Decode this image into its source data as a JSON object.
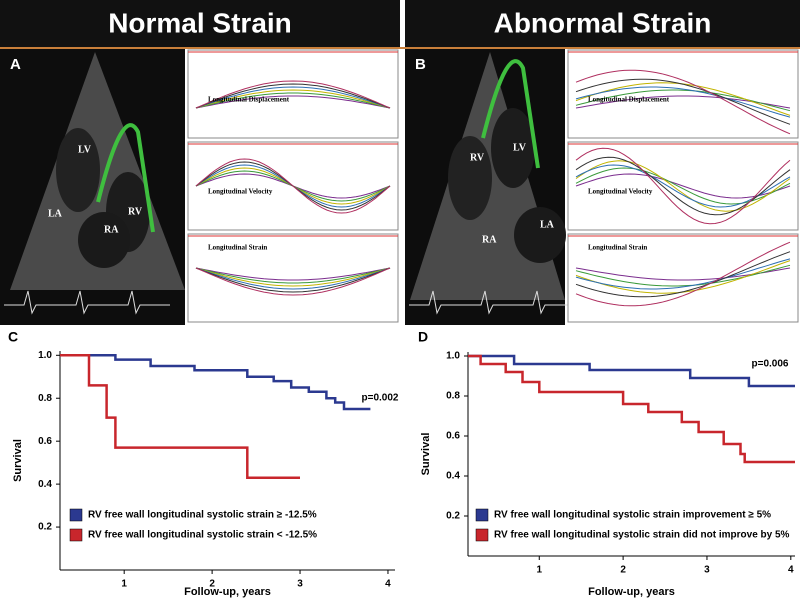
{
  "panels": [
    {
      "title": "Normal Strain",
      "label": "A",
      "chambers": [
        "LV",
        "RV",
        "LA",
        "RA"
      ],
      "plots": [
        "Longitudinal Displacement",
        "Longitudinal Velocity",
        "Longitudinal Strain"
      ]
    },
    {
      "title": "Abnormal Strain",
      "label": "B",
      "chambers": [
        "RV",
        "LV",
        "RA",
        "LA"
      ],
      "plots": [
        "Longitudinal Displacement",
        "Longitudinal Velocity",
        "Longitudinal Strain"
      ]
    }
  ],
  "chart_data": [
    {
      "type": "step",
      "panel_label": "C",
      "annotation": "p=0.002",
      "y_label": "Survival",
      "x_label": "Follow-up, years",
      "xlim": [
        0.27,
        4.08
      ],
      "ylim": [
        0,
        1.02
      ],
      "xticks": [
        1,
        2,
        3,
        4
      ],
      "yticks": [
        0.2,
        0.4,
        0.6,
        0.8,
        {
          "value": 1,
          "label": "1.0"
        }
      ],
      "series": [
        {
          "name": "RV free wall longitudinal systolic strain ≥ -12.5%",
          "color": "#2b3990",
          "x": [
            0.27,
            0.9,
            1.3,
            1.8,
            2.4,
            2.7,
            2.9,
            3.1,
            3.3,
            3.4,
            3.5,
            3.8
          ],
          "values": [
            1,
            0.98,
            0.95,
            0.93,
            0.9,
            0.88,
            0.85,
            0.83,
            0.8,
            0.78,
            0.75,
            0.75
          ]
        },
        {
          "name": "RV free wall longitudinal systolic strain < -12.5%",
          "color": "#c8262c",
          "x": [
            0.27,
            0.6,
            0.8,
            0.9,
            2.4,
            3.0
          ],
          "values": [
            1,
            0.86,
            0.71,
            0.57,
            0.43,
            0.43
          ]
        }
      ]
    },
    {
      "type": "step",
      "panel_label": "D",
      "annotation": "p=0.006",
      "y_label": "Survival",
      "x_label": "Follow-up, years",
      "xlim": [
        0.15,
        4.05
      ],
      "ylim": [
        0,
        1.02
      ],
      "xticks": [
        1,
        2,
        3,
        4
      ],
      "yticks": [
        0.2,
        0.4,
        0.6,
        0.8,
        {
          "value": 1,
          "label": "1.0"
        }
      ],
      "series": [
        {
          "name": "RV free wall longitudinal systolic strain improvement ≥ 5%",
          "color": "#2b3990",
          "x": [
            0.15,
            0.7,
            1.6,
            2.8,
            3.5,
            4.05
          ],
          "values": [
            1,
            0.96,
            0.93,
            0.89,
            0.85,
            0.85
          ]
        },
        {
          "name": "RV free wall longitudinal systolic strain did not improve by 5%",
          "color": "#c8262c",
          "x": [
            0.15,
            0.3,
            0.6,
            0.8,
            1.0,
            2.0,
            2.3,
            2.7,
            2.9,
            3.2,
            3.4,
            3.45,
            4.05
          ],
          "values": [
            1,
            0.96,
            0.92,
            0.87,
            0.82,
            0.76,
            0.72,
            0.67,
            0.62,
            0.56,
            0.51,
            0.47,
            0.47
          ]
        }
      ]
    }
  ]
}
